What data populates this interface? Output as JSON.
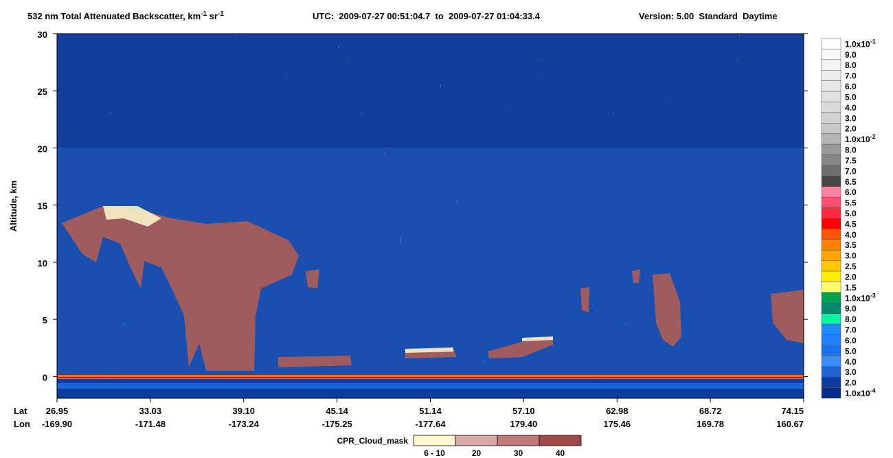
{
  "chart_data": {
    "type": "heatmap",
    "title": [
      {
        "text": "532 nm Total Attenuated Backscatter, km"
      },
      {
        "text": "-1",
        "sup": true
      },
      {
        "text": " sr"
      },
      {
        "text": "-1",
        "sup": true
      }
    ],
    "subtitle": "UTC:  2009-07-27 00:51:04.7  to  2009-07-27 01:04:33.4",
    "version": "Version: 5.00  Standard  Daytime",
    "y_label": "Altitude, km",
    "ylim": [
      -1.9,
      30
    ],
    "yticks": [
      0,
      5,
      10,
      15,
      20,
      25,
      30
    ],
    "x_rows": [
      {
        "name": "Lat",
        "labels": [
          "26.95",
          "33.03",
          "39.10",
          "45.14",
          "51.14",
          "57.10",
          "62.98",
          "68.72",
          "74.15"
        ]
      },
      {
        "name": "Lon",
        "labels": [
          "-169.90",
          "-171.48",
          "-173.24",
          "-175.25",
          "-177.64",
          "179.40",
          "175.46",
          "169.78",
          "160.67"
        ]
      }
    ],
    "colorbar": [
      {
        "color": "#ffffff",
        "label": {
          "text": "1.0x10",
          "sup": "-1"
        }
      },
      {
        "color": "#f9f9f9",
        "label": {
          "text": "9.0"
        }
      },
      {
        "color": "#f3f3f3",
        "label": {
          "text": "8.0"
        }
      },
      {
        "color": "#ededed",
        "label": {
          "text": "7.0"
        }
      },
      {
        "color": "#e7e7e7",
        "label": {
          "text": "6.0"
        }
      },
      {
        "color": "#e1e1e1",
        "label": {
          "text": "5.0"
        }
      },
      {
        "color": "#dadada",
        "label": {
          "text": "4.0"
        }
      },
      {
        "color": "#d2d2d2",
        "label": {
          "text": "3.0"
        }
      },
      {
        "color": "#c8c8c8",
        "label": {
          "text": "2.0"
        }
      },
      {
        "color": "#b4b4b4",
        "label": {
          "text": "1.0x10",
          "sup": "-2"
        }
      },
      {
        "color": "#9a9a9a",
        "label": {
          "text": "8.0"
        }
      },
      {
        "color": "#868686",
        "label": {
          "text": "7.5"
        }
      },
      {
        "color": "#6e6e6e",
        "label": {
          "text": "7.0"
        }
      },
      {
        "color": "#484848",
        "label": {
          "text": "6.5"
        }
      },
      {
        "color": "#ff80a0",
        "label": {
          "text": "6.0"
        }
      },
      {
        "color": "#ff5070",
        "label": {
          "text": "5.5"
        }
      },
      {
        "color": "#ff2a40",
        "label": {
          "text": "5.0"
        }
      },
      {
        "color": "#ff0000",
        "label": {
          "text": "4.5"
        }
      },
      {
        "color": "#ff5500",
        "label": {
          "text": "4.0"
        }
      },
      {
        "color": "#ff7f00",
        "label": {
          "text": "3.5"
        }
      },
      {
        "color": "#ffa500",
        "label": {
          "text": "3.0"
        }
      },
      {
        "color": "#ffc800",
        "label": {
          "text": "2.5"
        }
      },
      {
        "color": "#ffee00",
        "label": {
          "text": "2.0"
        }
      },
      {
        "color": "#ffff70",
        "label": {
          "text": "1.5"
        }
      },
      {
        "color": "#00a050",
        "label": {
          "text": "1.0x10",
          "sup": "-3"
        }
      },
      {
        "color": "#008870",
        "label": {
          "text": "9.0"
        }
      },
      {
        "color": "#00f5a0",
        "label": {
          "text": "8.0"
        }
      },
      {
        "color": "#1e8cff",
        "label": {
          "text": "7.0"
        }
      },
      {
        "color": "#2080ff",
        "label": {
          "text": "6.0"
        }
      },
      {
        "color": "#1a72f0",
        "label": {
          "text": "5.0"
        }
      },
      {
        "color": "#3a8cff",
        "label": {
          "text": "4.0"
        }
      },
      {
        "color": "#1e64d2",
        "label": {
          "text": "3.0"
        }
      },
      {
        "color": "#0c3ca0",
        "label": {
          "text": "2.0"
        }
      },
      {
        "color": "#0a2a90",
        "label": {
          "text": "1.0x10",
          "sup": "-4"
        }
      }
    ],
    "cpr_legend": {
      "title": "CPR_Cloud_mask",
      "entries": [
        {
          "color": "#fffacd",
          "label": "6 - 10"
        },
        {
          "color": "#d8a8a8",
          "label": "20"
        },
        {
          "color": "#c07878",
          "label": "30"
        },
        {
          "color": "#a04848",
          "label": "40"
        }
      ]
    }
  }
}
